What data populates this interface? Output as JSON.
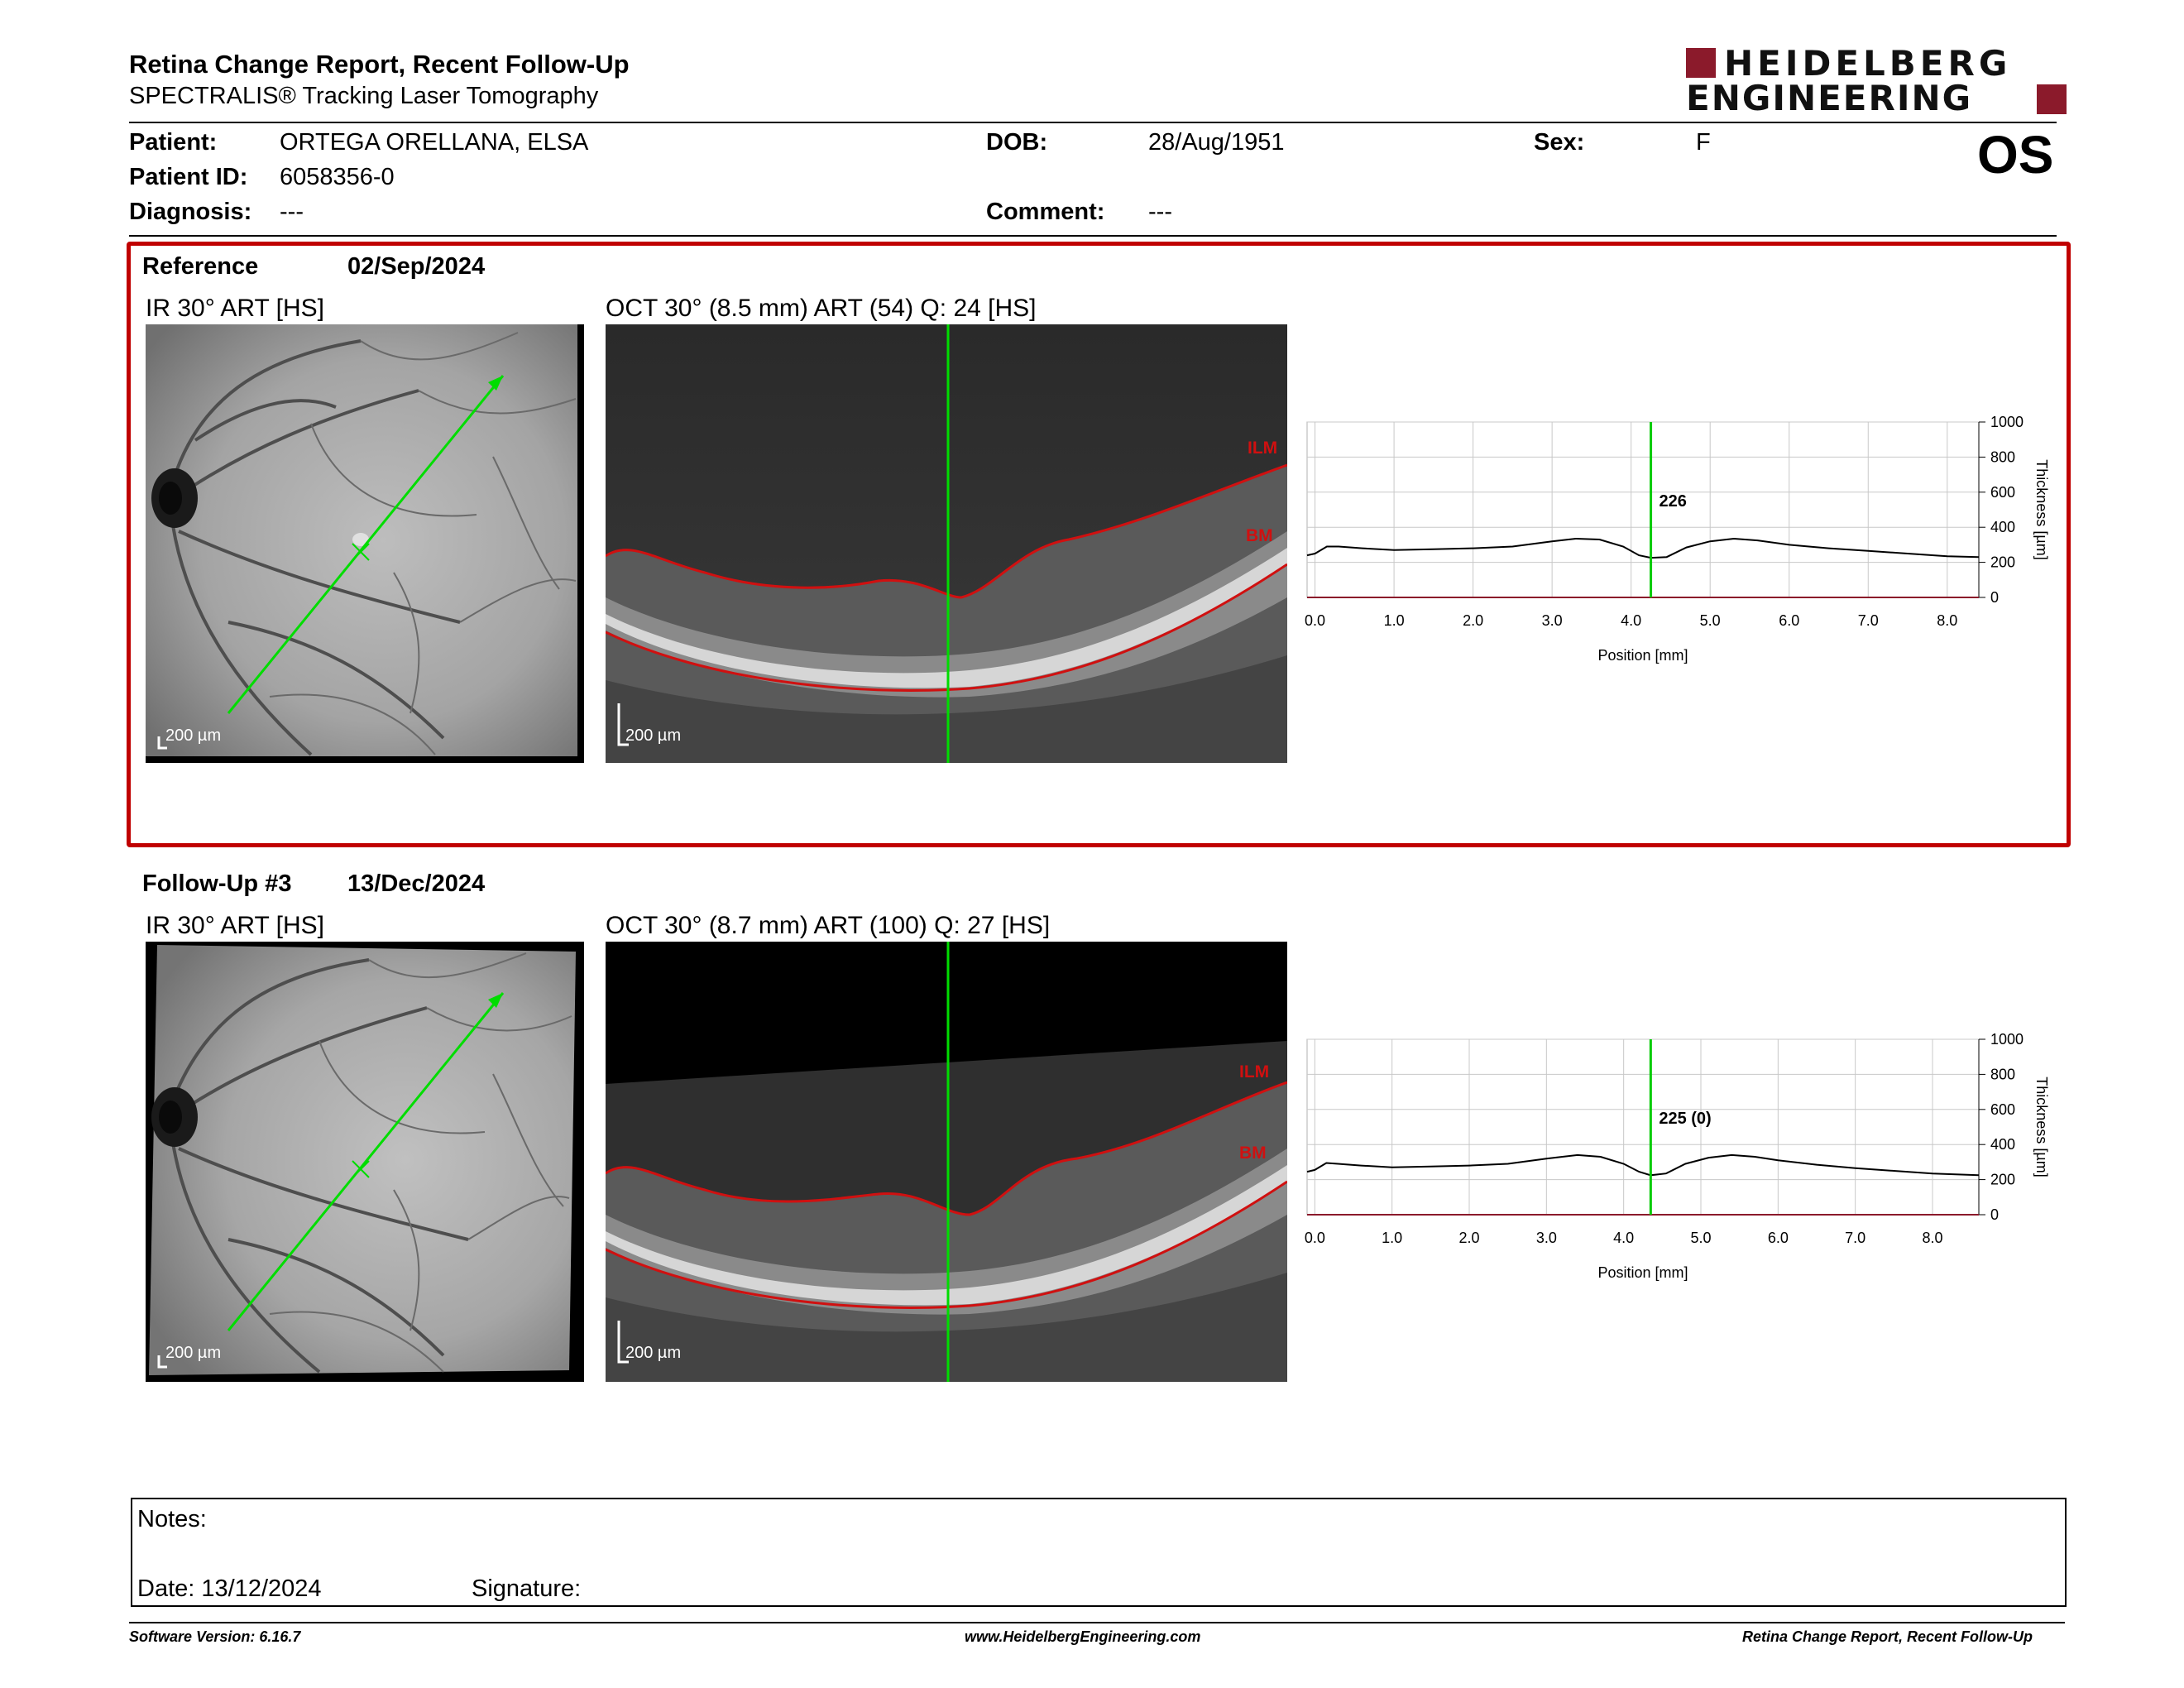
{
  "header": {
    "title": "Retina Change Report, Recent Follow-Up",
    "subtitle": "SPECTRALIS® Tracking Laser Tomography",
    "logo_line1": "HEIDELBERG",
    "logo_line2": "ENGINEERING",
    "eye": "OS"
  },
  "patient": {
    "patient_label": "Patient:",
    "patient_value": "ORTEGA ORELLANA, ELSA",
    "id_label": "Patient ID:",
    "id_value": "6058356-0",
    "diagnosis_label": "Diagnosis:",
    "diagnosis_value": "---",
    "dob_label": "DOB:",
    "dob_value": "28/Aug/1951",
    "comment_label": "Comment:",
    "comment_value": "---",
    "sex_label": "Sex:",
    "sex_value": "F"
  },
  "reference": {
    "label": "Reference",
    "date": "02/Sep/2024",
    "ir_label": "IR 30° ART [HS]",
    "oct_label": "OCT 30° (8.5 mm) ART (54) Q: 24 [HS]",
    "scale_ir": "200 µm",
    "scale_oct": "200 µm",
    "ilm": "ILM",
    "bm": "BM"
  },
  "followup": {
    "label": "Follow-Up #3",
    "date": "13/Dec/2024",
    "ir_label": "IR 30° ART [HS]",
    "oct_label": "OCT 30° (8.7 mm) ART (100) Q: 27 [HS]",
    "scale_ir": "200 µm",
    "scale_oct": "200 µm",
    "ilm": "ILM",
    "bm": "BM"
  },
  "notes": {
    "notes_label": "Notes:",
    "date_label": "Date: 13/12/2024",
    "signature_label": "Signature:"
  },
  "footer": {
    "software": "Software Version: 6.16.7",
    "website": "www.HeidelbergEngineering.com",
    "report": "Retina Change Report, Recent Follow-Up"
  },
  "colors": {
    "accent_red": "#c00000",
    "logo_red": "#8b1a2b",
    "cursor_green": "#00cc00",
    "ilm_red": "#d01010"
  },
  "chart_data": [
    {
      "type": "line",
      "name": "reference-thickness",
      "cursor_label": "226",
      "cursor_x": 4.25,
      "xlabel": "Position [mm]",
      "ylabel": "Thickness [µm]",
      "xlim": [
        -0.1,
        8.4
      ],
      "ylim": [
        0,
        1000
      ],
      "xticks": [
        "0.0",
        "1.0",
        "2.0",
        "3.0",
        "4.0",
        "5.0",
        "6.0",
        "7.0",
        "8.0"
      ],
      "yticks": [
        "0",
        "200",
        "400",
        "600",
        "800",
        "1000"
      ],
      "grid": true,
      "x": [
        -0.1,
        0.0,
        0.15,
        0.3,
        0.6,
        1.0,
        1.5,
        2.0,
        2.5,
        3.0,
        3.3,
        3.6,
        3.9,
        4.1,
        4.25,
        4.45,
        4.7,
        5.0,
        5.3,
        5.6,
        6.0,
        6.5,
        7.0,
        7.5,
        8.0,
        8.4
      ],
      "y": [
        240,
        250,
        290,
        290,
        280,
        270,
        275,
        280,
        290,
        320,
        335,
        330,
        290,
        240,
        226,
        230,
        285,
        320,
        335,
        325,
        300,
        280,
        265,
        250,
        235,
        230
      ]
    },
    {
      "type": "line",
      "name": "followup-thickness",
      "cursor_label": "225 (0)",
      "cursor_x": 4.35,
      "xlabel": "Position [mm]",
      "ylabel": "Thickness [µm]",
      "xlim": [
        -0.1,
        8.6
      ],
      "ylim": [
        0,
        1000
      ],
      "xticks": [
        "0.0",
        "1.0",
        "2.0",
        "3.0",
        "4.0",
        "5.0",
        "6.0",
        "7.0",
        "8.0"
      ],
      "yticks": [
        "0",
        "200",
        "400",
        "600",
        "800",
        "1000"
      ],
      "grid": true,
      "x": [
        -0.1,
        0.0,
        0.15,
        0.3,
        0.6,
        1.0,
        1.5,
        2.0,
        2.5,
        3.0,
        3.4,
        3.7,
        4.0,
        4.2,
        4.35,
        4.55,
        4.8,
        5.1,
        5.4,
        5.7,
        6.0,
        6.5,
        7.0,
        7.5,
        8.0,
        8.6
      ],
      "y": [
        245,
        255,
        295,
        290,
        280,
        270,
        275,
        280,
        290,
        320,
        340,
        330,
        290,
        245,
        225,
        235,
        290,
        325,
        340,
        330,
        310,
        285,
        265,
        250,
        235,
        225
      ]
    }
  ]
}
